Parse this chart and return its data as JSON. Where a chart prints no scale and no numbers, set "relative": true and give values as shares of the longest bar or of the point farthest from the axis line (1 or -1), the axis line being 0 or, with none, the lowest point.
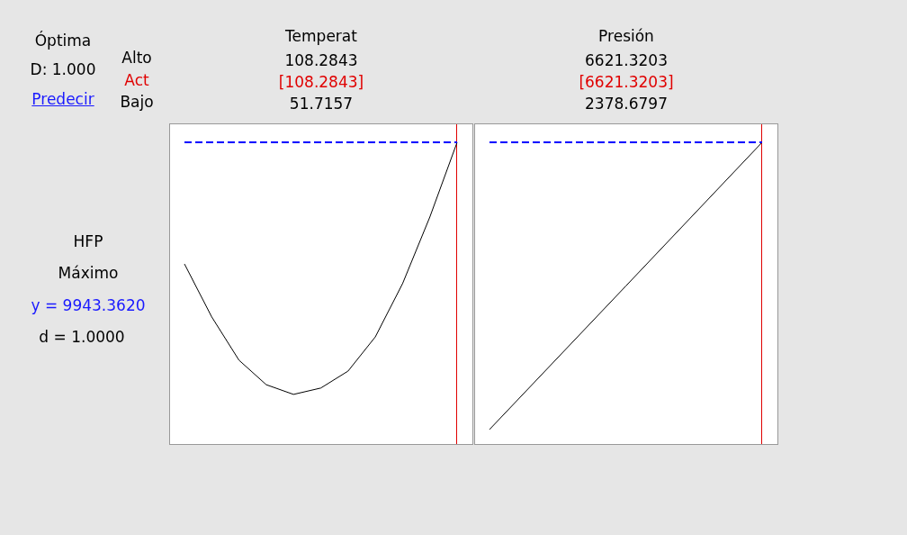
{
  "chart_data": [
    {
      "type": "line",
      "title": "Temperat",
      "relative": true,
      "tick_labels": false,
      "grid": false,
      "marker": "none",
      "annotations": [
        "Óptima",
        "D: 1.000",
        "Predecir",
        "Alto",
        "Act",
        "Bajo",
        "HFP",
        "Máximo",
        "y = 9943.3620",
        "d = 1.0000",
        "108.2843",
        "[108.2843]",
        "51.7157"
      ],
      "categories": [
        null,
        null,
        null,
        null,
        null,
        null,
        null,
        null,
        null,
        null,
        null
      ],
      "series": [
        {
          "color": "#000000",
          "values": [
            0.598,
            0.423,
            0.28,
            0.199,
            0.167,
            0.188,
            0.244,
            0.357,
            0.533,
            0.753,
            1
          ]
        }
      ],
      "ref_lines": [
        {
          "axis": "y",
          "value": 1,
          "color": "#0000ff",
          "line_style": "dashed"
        }
      ]
    },
    {
      "type": "line",
      "title": "Presión",
      "relative": true,
      "tick_labels": false,
      "grid": false,
      "marker": "none",
      "annotations": [
        "6621.3203",
        "[6621.3203]",
        "2378.6797"
      ],
      "categories": [
        null,
        null,
        null
      ],
      "series": [
        {
          "color": "#000000",
          "values": [
            0.051,
            0.525,
            1
          ]
        }
      ],
      "ref_lines": [
        {
          "axis": "y",
          "value": 1,
          "color": "#0000ff",
          "line_style": "dashed"
        }
      ]
    }
  ]
}
